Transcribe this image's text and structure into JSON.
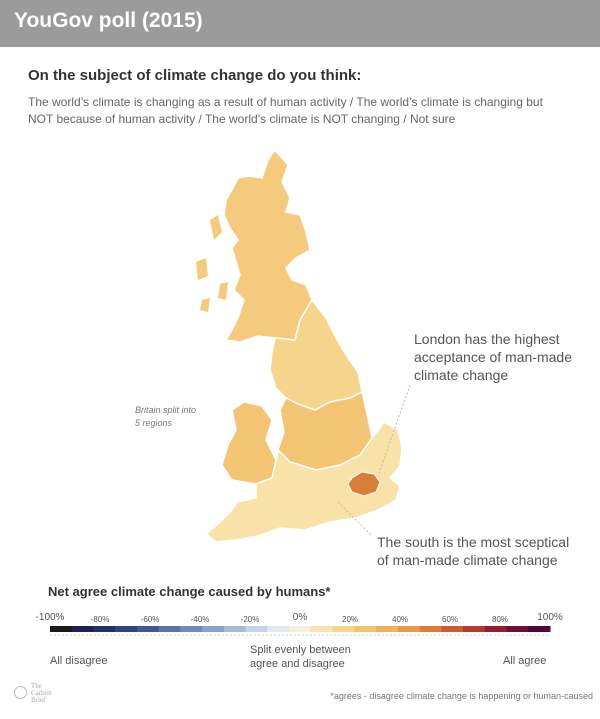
{
  "header": {
    "title": "YouGov poll (2015)"
  },
  "question": "On the subject of climate change do you think:",
  "answers_line1": "The world’s climate is changing as a result of human activity / The world’s climate is changing but",
  "answers_line2": "NOT because of human activity / The world’s climate is NOT changing / Not sure",
  "map": {
    "note_line1": "Britain split into",
    "note_line2": "5 regions",
    "regions": [
      {
        "name": "Scotland",
        "color": "#f4ca7c"
      },
      {
        "name": "North England",
        "color": "#f6d48c"
      },
      {
        "name": "Midlands & Wales",
        "color": "#f2c474"
      },
      {
        "name": "South England",
        "color": "#f8e2a8"
      },
      {
        "name": "London",
        "color": "#d77f3a"
      }
    ],
    "annotation_london": [
      "London has the highest",
      "acceptance of man-made",
      "climate change"
    ],
    "annotation_south": [
      "The south is the most sceptical",
      "of man-made climate change"
    ]
  },
  "legend": {
    "title": "Net agree climate change caused by humans*",
    "ticks": [
      "-100%",
      "-80%",
      "-60%",
      "-40%",
      "-20%",
      "0%",
      "20%",
      "40%",
      "60%",
      "80%",
      "100%"
    ],
    "colors": [
      "#1a1a1a",
      "#1f2050",
      "#23306b",
      "#2c4480",
      "#3d5a96",
      "#5673aa",
      "#6f8bbd",
      "#8aa3cc",
      "#a6bbda",
      "#c6d3e6",
      "#e3e8f0",
      "#faf0d8",
      "#f7e2b0",
      "#f5d48e",
      "#f2c470",
      "#eeb25c",
      "#e89a4a",
      "#dd7c3c",
      "#cc5a33",
      "#b23a30",
      "#8f1f34",
      "#6b1138",
      "#4a0a34"
    ],
    "desc_left": "All disagree",
    "desc_mid": "Split evenly between agree and disagree",
    "desc_right": "All agree"
  },
  "footnote": "*agrees - disagree climate change is happening or human-caused",
  "logo": {
    "line1": "The",
    "line2": "Carbon",
    "line3": "Brief"
  }
}
